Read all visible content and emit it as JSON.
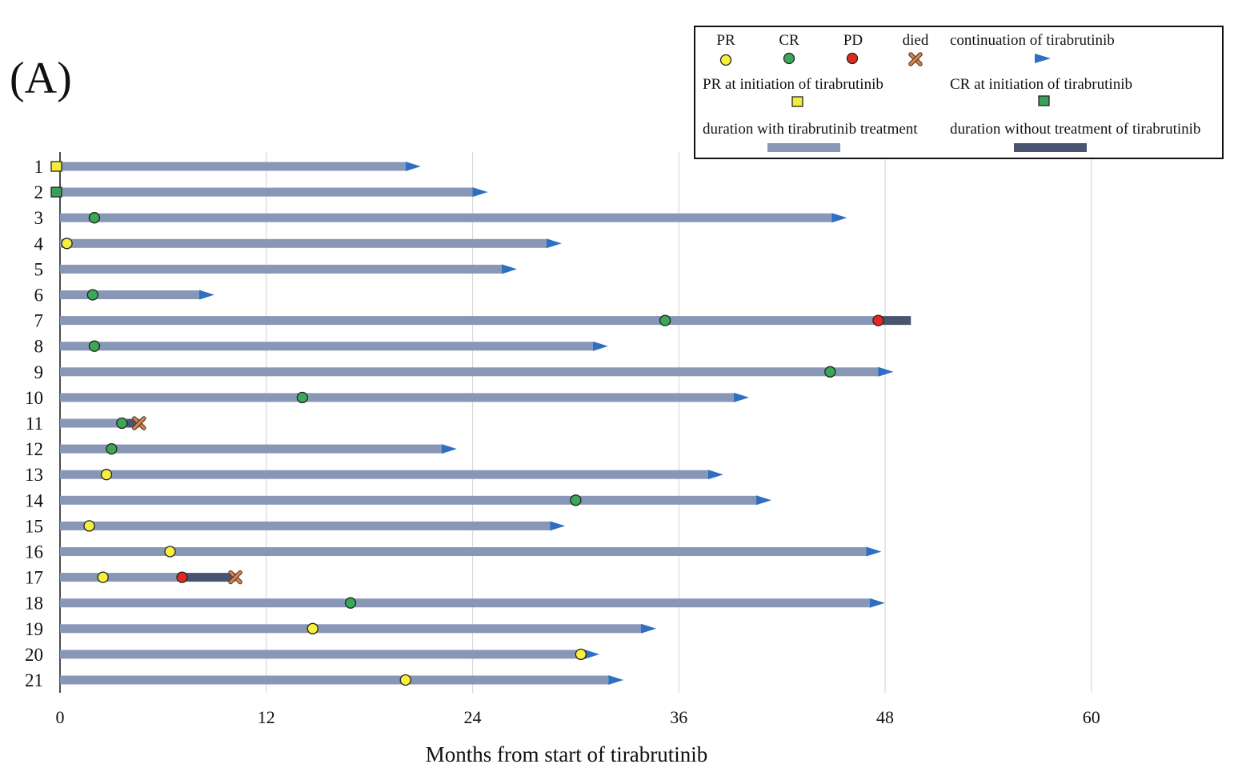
{
  "panel_label": "(A)",
  "legend": {
    "pr": "PR",
    "cr": "CR",
    "pd": "PD",
    "died": "died",
    "continuation": "continuation of tirabrutinib",
    "pr_init": "PR at initiation of tirabrutinib",
    "cr_init": "CR at initiation of tirabrutinib",
    "with_treatment": "duration with tirabrutinib treatment",
    "without_treatment": "duration without treatment of tirabrutinib"
  },
  "colors": {
    "bar_on": "#8797b5",
    "bar_off": "#4a5470",
    "arrow": "#2f6fc1",
    "pr": "#f7ef3a",
    "cr": "#3aa857",
    "pd": "#e02a1f",
    "died": "#d9844f",
    "pr_square": "#f4ec3c",
    "cr_square": "#3b9f5c"
  },
  "chart_data": {
    "type": "swimmer",
    "xlabel": "Months from start of tirabrutinib",
    "xlim": [
      0,
      66
    ],
    "xticks": [
      0,
      12,
      24,
      36,
      48,
      60
    ],
    "grid": true,
    "legend_position": "top-right",
    "patients": [
      {
        "id": "1",
        "on": 20.1,
        "off": null,
        "continuing": true,
        "events": [
          {
            "type": "pr_init",
            "t": 0
          }
        ]
      },
      {
        "id": "2",
        "on": 24.0,
        "off": null,
        "continuing": true,
        "events": [
          {
            "type": "cr_init",
            "t": 0
          }
        ]
      },
      {
        "id": "3",
        "on": 44.9,
        "off": null,
        "continuing": true,
        "events": [
          {
            "type": "cr",
            "t": 2.0
          }
        ]
      },
      {
        "id": "4",
        "on": 28.3,
        "off": null,
        "continuing": true,
        "events": [
          {
            "type": "pr",
            "t": 0.4
          }
        ]
      },
      {
        "id": "5",
        "on": 25.7,
        "off": null,
        "continuing": true,
        "events": []
      },
      {
        "id": "6",
        "on": 8.1,
        "off": null,
        "continuing": true,
        "events": [
          {
            "type": "cr",
            "t": 1.9
          }
        ]
      },
      {
        "id": "7",
        "on": 47.6,
        "off": 49.5,
        "continuing": false,
        "events": [
          {
            "type": "cr",
            "t": 35.2
          },
          {
            "type": "pd",
            "t": 47.6
          }
        ]
      },
      {
        "id": "8",
        "on": 31.0,
        "off": null,
        "continuing": true,
        "events": [
          {
            "type": "cr",
            "t": 2.0
          }
        ]
      },
      {
        "id": "9",
        "on": 47.6,
        "off": null,
        "continuing": true,
        "events": [
          {
            "type": "cr",
            "t": 44.8
          }
        ]
      },
      {
        "id": "10",
        "on": 39.2,
        "off": null,
        "continuing": true,
        "events": [
          {
            "type": "cr",
            "t": 14.1
          }
        ]
      },
      {
        "id": "11",
        "on": 3.9,
        "off": 4.6,
        "continuing": false,
        "events": [
          {
            "type": "cr",
            "t": 3.6
          },
          {
            "type": "died",
            "t": 4.6
          }
        ]
      },
      {
        "id": "12",
        "on": 22.2,
        "off": null,
        "continuing": true,
        "events": [
          {
            "type": "cr",
            "t": 3.0
          }
        ]
      },
      {
        "id": "13",
        "on": 37.7,
        "off": null,
        "continuing": true,
        "events": [
          {
            "type": "pr",
            "t": 2.7
          }
        ]
      },
      {
        "id": "14",
        "on": 40.5,
        "off": null,
        "continuing": true,
        "events": [
          {
            "type": "cr",
            "t": 30.0
          }
        ]
      },
      {
        "id": "15",
        "on": 28.5,
        "off": null,
        "continuing": true,
        "events": [
          {
            "type": "pr",
            "t": 1.7
          }
        ]
      },
      {
        "id": "16",
        "on": 46.9,
        "off": null,
        "continuing": true,
        "events": [
          {
            "type": "pr",
            "t": 6.4
          }
        ]
      },
      {
        "id": "17",
        "on": 7.1,
        "off": 10.2,
        "continuing": false,
        "events": [
          {
            "type": "pr",
            "t": 2.5
          },
          {
            "type": "pd",
            "t": 7.1
          },
          {
            "type": "died",
            "t": 10.2
          }
        ]
      },
      {
        "id": "18",
        "on": 47.1,
        "off": null,
        "continuing": true,
        "events": [
          {
            "type": "cr",
            "t": 16.9
          }
        ]
      },
      {
        "id": "19",
        "on": 33.8,
        "off": null,
        "continuing": true,
        "events": [
          {
            "type": "pr",
            "t": 14.7
          }
        ]
      },
      {
        "id": "20",
        "on": 30.5,
        "off": null,
        "continuing": true,
        "events": [
          {
            "type": "pr",
            "t": 30.3
          }
        ]
      },
      {
        "id": "21",
        "on": 31.9,
        "off": null,
        "continuing": true,
        "events": [
          {
            "type": "pr",
            "t": 20.1
          }
        ]
      }
    ]
  }
}
